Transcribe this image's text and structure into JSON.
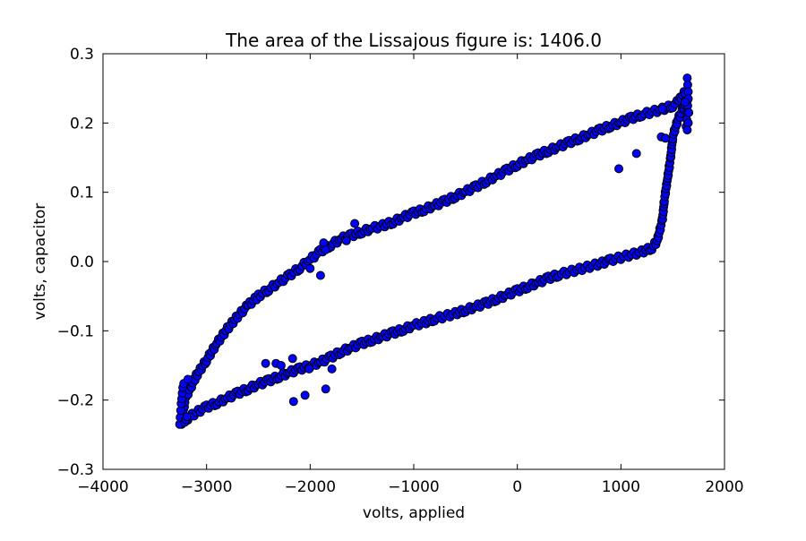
{
  "chart_data": {
    "type": "scatter",
    "title": "The area of the Lissajous figure is: 1406.0",
    "xlabel": "volts, applied",
    "ylabel": "volts, capacitor",
    "xlim": [
      -4000,
      2000
    ],
    "ylim": [
      -0.3,
      0.3
    ],
    "xticks": [
      -4000,
      -3000,
      -2000,
      -1000,
      0,
      1000,
      2000
    ],
    "xtick_labels": [
      "−4000",
      "−3000",
      "−2000",
      "−1000",
      "0",
      "1000",
      "2000"
    ],
    "yticks": [
      -0.3,
      -0.2,
      -0.1,
      0.0,
      0.1,
      0.2,
      0.3
    ],
    "ytick_labels": [
      "−0.3",
      "−0.2",
      "−0.1",
      "0.0",
      "0.1",
      "0.2",
      "0.3"
    ],
    "grid": false,
    "legend": false,
    "marker_color": "#0000ff",
    "marker_edge_color": "#000000",
    "series": [
      {
        "upper_branch": {
          "x": [
            -3240,
            -3200,
            -3100,
            -3000,
            -2900,
            -2800,
            -2700,
            -2600,
            -2500,
            -2400,
            -2300,
            -2200,
            -2100,
            -2000,
            -1900,
            -1800,
            -1700,
            -1600,
            -1500,
            -1400,
            -1300,
            -1200,
            -1100,
            -1000,
            -900,
            -800,
            -700,
            -600,
            -500,
            -400,
            -300,
            -200,
            -100,
            0,
            100,
            200,
            300,
            400,
            500,
            600,
            700,
            800,
            900,
            1000,
            1100,
            1200,
            1300,
            1400,
            1500,
            1560,
            1620
          ],
          "y": [
            -0.228,
            -0.196,
            -0.165,
            -0.142,
            -0.118,
            -0.097,
            -0.079,
            -0.063,
            -0.05,
            -0.04,
            -0.03,
            -0.02,
            -0.009,
            0.003,
            0.015,
            0.024,
            0.033,
            0.038,
            0.043,
            0.048,
            0.052,
            0.057,
            0.064,
            0.07,
            0.075,
            0.081,
            0.087,
            0.094,
            0.101,
            0.108,
            0.116,
            0.124,
            0.132,
            0.14,
            0.147,
            0.154,
            0.16,
            0.166,
            0.172,
            0.178,
            0.184,
            0.19,
            0.196,
            0.201,
            0.207,
            0.212,
            0.216,
            0.22,
            0.225,
            0.232,
            0.245
          ]
        },
        "lower_branch": {
          "x": [
            -3240,
            -3100,
            -3000,
            -2900,
            -2800,
            -2700,
            -2600,
            -2500,
            -2400,
            -2300,
            -2200,
            -2100,
            -2000,
            -1900,
            -1800,
            -1700,
            -1600,
            -1500,
            -1400,
            -1300,
            -1200,
            -1100,
            -1000,
            -900,
            -800,
            -700,
            -600,
            -500,
            -400,
            -300,
            -200,
            -100,
            0,
            100,
            200,
            300,
            400,
            500,
            600,
            700,
            800,
            900,
            1000,
            1100,
            1200,
            1300,
            1350,
            1400,
            1420,
            1450,
            1480,
            1500,
            1550,
            1600,
            1640
          ],
          "y": [
            -0.232,
            -0.218,
            -0.21,
            -0.204,
            -0.197,
            -0.19,
            -0.184,
            -0.177,
            -0.172,
            -0.166,
            -0.16,
            -0.155,
            -0.15,
            -0.145,
            -0.138,
            -0.13,
            -0.124,
            -0.118,
            -0.113,
            -0.108,
            -0.103,
            -0.098,
            -0.092,
            -0.088,
            -0.083,
            -0.079,
            -0.075,
            -0.07,
            -0.065,
            -0.06,
            -0.054,
            -0.048,
            -0.042,
            -0.036,
            -0.03,
            -0.024,
            -0.019,
            -0.015,
            -0.011,
            -0.007,
            -0.003,
            0.002,
            0.006,
            0.01,
            0.014,
            0.02,
            0.03,
            0.06,
            0.09,
            0.12,
            0.15,
            0.18,
            0.205,
            0.22,
            0.235
          ]
        },
        "left_tip": {
          "x": [
            -3260,
            -3255,
            -3250,
            -3245,
            -3240,
            -3235,
            -3230,
            -3220,
            -3210,
            -3200,
            -3190,
            -3180
          ],
          "y": [
            -0.235,
            -0.225,
            -0.215,
            -0.205,
            -0.198,
            -0.19,
            -0.182,
            -0.176,
            -0.232,
            -0.228,
            -0.224,
            -0.17
          ]
        },
        "right_tip": {
          "x": [
            1640,
            1645,
            1650,
            1650,
            1645,
            1640,
            1635,
            1630,
            1650,
            1655,
            1640,
            1620
          ],
          "y": [
            0.265,
            0.255,
            0.245,
            0.235,
            0.225,
            0.215,
            0.205,
            0.195,
            0.2,
            0.215,
            0.19,
            0.23
          ]
        },
        "outliers": {
          "x": [
            -1570,
            -1870,
            -2430,
            -2330,
            -2170,
            -2160,
            -2050,
            -2010,
            -1850,
            -1790,
            -1900,
            -2000,
            980,
            1150,
            1390,
            1400,
            1430,
            -1850,
            -1650,
            -2280
          ],
          "y": [
            0.055,
            0.027,
            -0.147,
            -0.147,
            -0.14,
            -0.202,
            -0.193,
            -0.155,
            -0.184,
            -0.155,
            -0.02,
            -0.01,
            0.134,
            0.156,
            0.18,
            0.22,
            0.178,
            0.017,
            0.03,
            -0.15
          ]
        }
      }
    ]
  }
}
